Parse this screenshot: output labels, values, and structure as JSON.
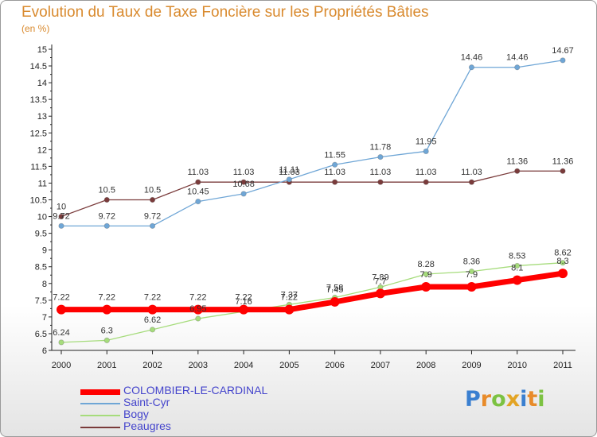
{
  "title": "Evolution du Taux de Taxe Foncière sur les Propriétés Bâties",
  "subtitle": "(en %)",
  "brand": {
    "text": "Proxiti",
    "letter_colors": [
      "#3a7fd0",
      "#e88b2a",
      "#7cc242",
      "#e3a424",
      "#3a7fd0",
      "#e88b2a",
      "#7cc242"
    ]
  },
  "chart_data": {
    "type": "line",
    "title": "Evolution du Taux de Taxe Foncière sur les Propriétés Bâties",
    "ylabel": "(en %)",
    "xlabel": "",
    "x": [
      "2000",
      "2001",
      "2002",
      "2003",
      "2004",
      "2005",
      "2006",
      "2007",
      "2008",
      "2009",
      "2010",
      "2011"
    ],
    "ylim": [
      6,
      15
    ],
    "yticks": [
      "6",
      "6.5",
      "7",
      "7.5",
      "8",
      "8.5",
      "9",
      "9.5",
      "10",
      "10.5",
      "11",
      "11.5",
      "12",
      "12.5",
      "13",
      "13.5",
      "14",
      "14.5",
      "15"
    ],
    "grid": false,
    "legend_position": "bottom-left",
    "series": [
      {
        "name": "COLOMBIER-LE-CARDINAL",
        "color": "#ff0000",
        "values": [
          7.22,
          7.22,
          7.22,
          7.22,
          7.22,
          7.22,
          7.45,
          7.7,
          7.9,
          7.9,
          8.1,
          8.3
        ],
        "labels": [
          "7.22",
          "7.22",
          "7.22",
          "7.22",
          "7.22",
          "7.22",
          "7.45",
          "7.7",
          "7.9",
          "7.9",
          "8.1",
          "8.3"
        ]
      },
      {
        "name": "Saint-Cyr",
        "color": "#6fa6d6",
        "values": [
          9.72,
          9.72,
          9.72,
          10.45,
          10.68,
          11.11,
          11.55,
          11.78,
          11.95,
          14.46,
          14.46,
          14.67
        ],
        "labels": [
          "9.72",
          "9.72",
          "9.72",
          "10.45",
          "10.68",
          "11.11",
          "11.55",
          "11.78",
          "11.95",
          "14.46",
          "14.46",
          "14.67"
        ]
      },
      {
        "name": "Bogy",
        "color": "#a6dc7c",
        "values": [
          6.24,
          6.3,
          6.62,
          6.95,
          7.16,
          7.37,
          7.58,
          7.89,
          8.28,
          8.36,
          8.53,
          8.62
        ],
        "labels": [
          "6.24",
          "6.3",
          "6.62",
          "6.95",
          "7.16",
          "7.37",
          "7.58",
          "7.89",
          "8.28",
          "8.36",
          "8.53",
          "8.62"
        ]
      },
      {
        "name": "Peaugres",
        "color": "#7a3b3b",
        "values": [
          10,
          10.5,
          10.5,
          11.03,
          11.03,
          11.03,
          11.03,
          11.03,
          11.03,
          11.03,
          11.36,
          11.36
        ],
        "labels": [
          "10",
          "10.5",
          "10.5",
          "11.03",
          "11.03",
          "11.03",
          "11.03",
          "11.03",
          "11.03",
          "11.03",
          "11.36",
          "11.36"
        ]
      }
    ]
  }
}
